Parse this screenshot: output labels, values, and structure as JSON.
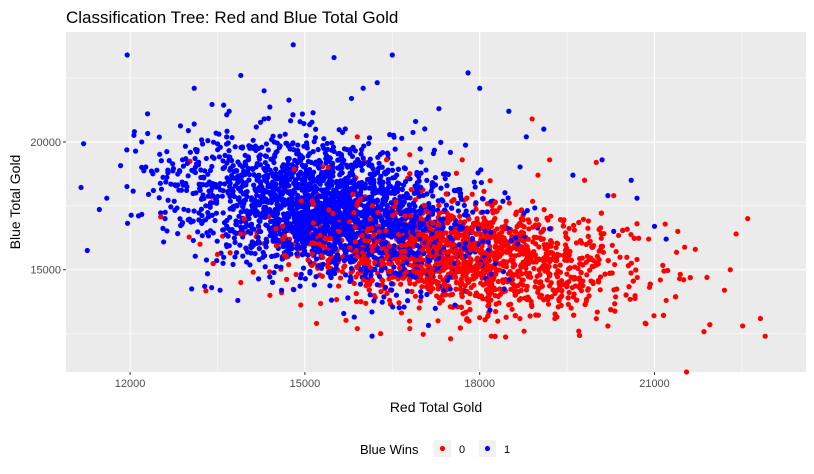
{
  "chart_data": {
    "type": "scatter",
    "title": "Classification Tree: Red and Blue Total Gold",
    "xlabel": "Red Total Gold",
    "ylabel": "Blue Total Gold",
    "xlim": [
      10900,
      23600
    ],
    "ylim": [
      11000,
      24300
    ],
    "x_ticks": [
      12000,
      15000,
      18000,
      21000
    ],
    "x_tick_labels": [
      "12000",
      "15000",
      "18000",
      "21000"
    ],
    "y_ticks": [
      15000,
      20000
    ],
    "y_tick_labels": [
      "15000",
      "20000"
    ],
    "grid": true,
    "panel_background": "#ebebeb",
    "legend": {
      "title": "Blue Wins",
      "position": "bottom",
      "entries": [
        {
          "label": "0",
          "color": "#ff0000"
        },
        {
          "label": "1",
          "color": "#0000ff"
        }
      ]
    },
    "series": [
      {
        "name": "0",
        "color": "#ff0000",
        "cloud": {
          "x_mean": 17600,
          "x_sd": 1450,
          "y_mean": 15600,
          "y_sd": 1050,
          "corr": -0.3,
          "count": 1700
        },
        "points": [
          [
            21550,
            11000
          ],
          [
            22900,
            12400
          ],
          [
            22600,
            17000
          ],
          [
            22400,
            16400
          ],
          [
            22200,
            14200
          ],
          [
            21900,
            14700
          ],
          [
            21700,
            15800
          ],
          [
            21400,
            16500
          ],
          [
            21100,
            14600
          ],
          [
            20700,
            15400
          ],
          [
            20900,
            16200
          ],
          [
            20300,
            17900
          ],
          [
            20000,
            19200
          ],
          [
            19800,
            18500
          ],
          [
            19400,
            13600
          ],
          [
            20200,
            12800
          ],
          [
            18200,
            12400
          ],
          [
            17500,
            12300
          ],
          [
            16300,
            12500
          ],
          [
            15900,
            12700
          ],
          [
            15200,
            12900
          ],
          [
            16800,
            12700
          ],
          [
            14400,
            14000
          ],
          [
            13900,
            14500
          ],
          [
            13500,
            15600
          ],
          [
            13200,
            16000
          ],
          [
            18900,
            20900
          ],
          [
            17700,
            19300
          ],
          [
            16800,
            19500
          ],
          [
            16400,
            19300
          ],
          [
            15900,
            20200
          ],
          [
            15400,
            19000
          ],
          [
            19200,
            19300
          ],
          [
            19000,
            18700
          ],
          [
            13900,
            16400
          ],
          [
            14600,
            14100
          ],
          [
            21200,
            13800
          ],
          [
            20700,
            16800
          ],
          [
            22300,
            15000
          ],
          [
            19700,
            12600
          ]
        ]
      },
      {
        "name": "1",
        "color": "#0000ff",
        "cloud": {
          "x_mean": 15300,
          "x_sd": 1250,
          "y_mean": 17400,
          "y_sd": 1350,
          "corr": -0.3,
          "count": 2300
        },
        "points": [
          [
            11950,
            23400
          ],
          [
            11600,
            17800
          ],
          [
            14800,
            23800
          ],
          [
            15500,
            23300
          ],
          [
            16500,
            23400
          ],
          [
            13900,
            22600
          ],
          [
            12300,
            21100
          ],
          [
            12400,
            18100
          ],
          [
            13100,
            22100
          ],
          [
            14300,
            22000
          ],
          [
            16000,
            22100
          ],
          [
            17800,
            22700
          ],
          [
            18000,
            22100
          ],
          [
            17300,
            21300
          ],
          [
            18500,
            21200
          ],
          [
            19100,
            20500
          ],
          [
            20100,
            19300
          ],
          [
            20600,
            18500
          ],
          [
            20700,
            17800
          ],
          [
            21000,
            16700
          ],
          [
            21200,
            16200
          ],
          [
            20200,
            17900
          ],
          [
            19200,
            16600
          ],
          [
            12600,
            17000
          ],
          [
            13100,
            20700
          ],
          [
            13400,
            14300
          ],
          [
            13800,
            15500
          ],
          [
            14600,
            14200
          ],
          [
            12900,
            19300
          ],
          [
            13700,
            21200
          ],
          [
            14300,
            20900
          ],
          [
            15800,
            21700
          ],
          [
            16900,
            20800
          ],
          [
            18800,
            20200
          ],
          [
            19600,
            18700
          ],
          [
            12800,
            18300
          ],
          [
            13300,
            17500
          ],
          [
            14000,
            15300
          ],
          [
            20300,
            16500
          ],
          [
            12200,
            20000
          ]
        ]
      }
    ]
  }
}
